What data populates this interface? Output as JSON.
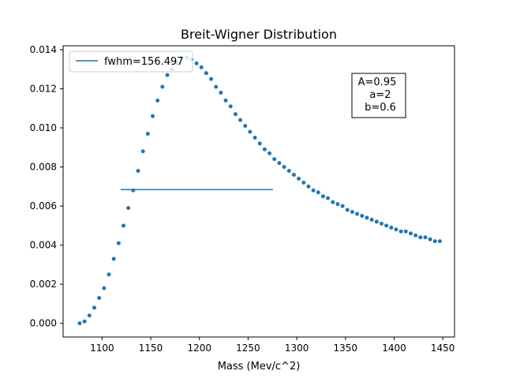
{
  "chart_data": {
    "type": "scatter",
    "title": "Breit-Wigner Distribution",
    "xlabel": "Mass (Mev/c^2)",
    "ylabel": "",
    "xlim": [
      1060,
      1462
    ],
    "ylim": [
      -0.0007,
      0.0142
    ],
    "xticks": [
      1100,
      1150,
      1200,
      1250,
      1300,
      1350,
      1400,
      1450
    ],
    "xtick_labels": [
      "1100",
      "1150",
      "1200",
      "1250",
      "1300",
      "1350",
      "1400",
      "1450"
    ],
    "yticks": [
      0.0,
      0.002,
      0.004,
      0.006,
      0.008,
      0.01,
      0.012,
      0.014
    ],
    "ytick_labels": [
      "0.000",
      "0.002",
      "0.004",
      "0.006",
      "0.008",
      "0.010",
      "0.012",
      "0.014"
    ],
    "grid": false,
    "legend_position": "top-left",
    "series": [
      {
        "kind": "points",
        "color": "#1f77b4",
        "x": [
          1077,
          1082,
          1087,
          1092,
          1097,
          1102,
          1107,
          1112,
          1117,
          1122,
          1127,
          1132,
          1137,
          1142,
          1147,
          1152,
          1157,
          1162,
          1167,
          1172,
          1177,
          1182,
          1187,
          1192,
          1197,
          1202,
          1207,
          1212,
          1217,
          1222,
          1227,
          1232,
          1237,
          1242,
          1247,
          1252,
          1257,
          1262,
          1267,
          1272,
          1277,
          1282,
          1287,
          1292,
          1297,
          1302,
          1307,
          1312,
          1317,
          1322,
          1327,
          1332,
          1337,
          1342,
          1347,
          1352,
          1357,
          1362,
          1367,
          1372,
          1377,
          1382,
          1387,
          1392,
          1397,
          1402,
          1407,
          1412,
          1417,
          1422,
          1427,
          1432,
          1437,
          1442,
          1447
        ],
        "y": [
          0.0,
          0.0001,
          0.0004,
          0.0008,
          0.0013,
          0.0018,
          0.0025,
          0.0033,
          0.0041,
          0.005,
          0.0059,
          0.0068,
          0.0078,
          0.0088,
          0.0097,
          0.0106,
          0.0114,
          0.0121,
          0.0127,
          0.013,
          0.0133,
          0.0136,
          0.0136,
          0.0135,
          0.0133,
          0.0131,
          0.0128,
          0.0125,
          0.0121,
          0.0118,
          0.0114,
          0.0111,
          0.0107,
          0.0104,
          0.0101,
          0.0098,
          0.0095,
          0.0092,
          0.0089,
          0.0087,
          0.0084,
          0.0082,
          0.008,
          0.0078,
          0.0076,
          0.0074,
          0.0072,
          0.007,
          0.0068,
          0.0067,
          0.0065,
          0.0064,
          0.0062,
          0.0061,
          0.006,
          0.0058,
          0.0057,
          0.0056,
          0.0055,
          0.0054,
          0.0053,
          0.0052,
          0.0051,
          0.005,
          0.0049,
          0.0048,
          0.0047,
          0.0047,
          0.0046,
          0.0045,
          0.0044,
          0.0044,
          0.0043,
          0.0042,
          0.0042
        ]
      },
      {
        "kind": "hline",
        "name": "fwhm=156.497",
        "color": "#1f77b4",
        "y": 0.00684,
        "x_start": 1119,
        "x_end": 1275.5
      }
    ],
    "annotation": {
      "lines": [
        "A=0.95",
        "a=2",
        "b=0.6"
      ],
      "x": 1384,
      "y": 0.0117
    }
  }
}
